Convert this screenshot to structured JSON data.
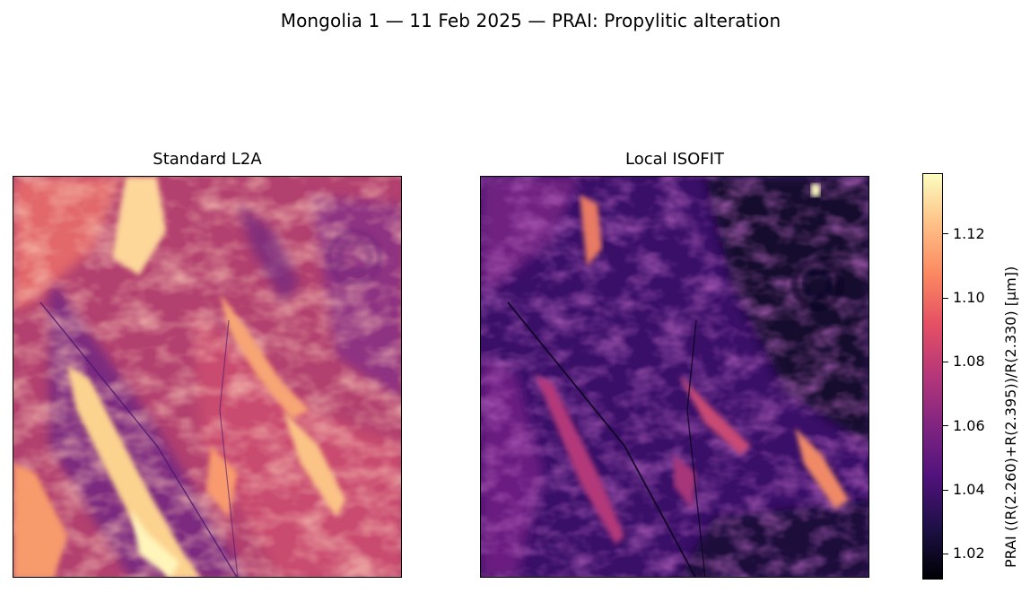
{
  "figure": {
    "title": "Mongolia 1 — 11 Feb 2025 — PRAI: Propylitic alteration"
  },
  "panels": [
    {
      "title": "Standard L2A"
    },
    {
      "title": "Local ISOFIT"
    }
  ],
  "colorbar": {
    "label": "PRAI  ((R(2.260)+R(2.395))/R(2.330)  [µm])",
    "colormap": "magma",
    "range": [
      1.012,
      1.139
    ],
    "ticks": [
      "1.02",
      "1.04",
      "1.06",
      "1.08",
      "1.10",
      "1.12"
    ]
  }
}
